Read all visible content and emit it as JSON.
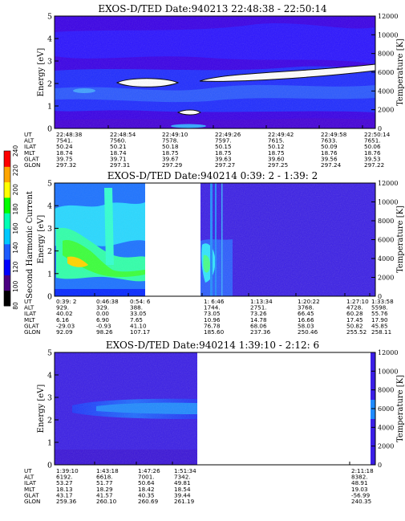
{
  "colorbar": {
    "label": "Second Harmonic Current",
    "ticks": [
      "80",
      "100",
      "120",
      "140",
      "160",
      "180",
      "200",
      "220",
      "240"
    ],
    "colors": [
      "#000000",
      "#4b0082",
      "#0000ff",
      "#1e5cff",
      "#00c8ff",
      "#00ffb4",
      "#00ff00",
      "#ffff00",
      "#ffa500",
      "#ff0000"
    ]
  },
  "chart_data": [
    {
      "type": "heatmap",
      "title": "EXOS-D/TED  Date:940213  22:48:38 - 22:50:14",
      "ylabel": "Energy [eV]",
      "ylim": [
        0,
        5
      ],
      "yticks": [
        "0",
        "1",
        "2",
        "3",
        "4",
        "5"
      ],
      "y2label": "Temperature [K]",
      "y2lim": [
        0,
        12000
      ],
      "y2ticks": [
        "0",
        "2000",
        "4000",
        "6000",
        "8000",
        "10000",
        "12000"
      ],
      "xrange": [
        "22:48:38",
        "22:50:14"
      ],
      "orbit_table": {
        "rows": [
          "UT",
          "ALT",
          "ILAT",
          "MLT",
          "GLAT",
          "GLON"
        ],
        "columns": [
          [
            "22:48:38",
            "7541.",
            "50.24",
            "18.74",
            "39.75",
            "297.32"
          ],
          [
            "22:48:54",
            "7560.",
            "50.21",
            "18.74",
            "39.71",
            "297.31"
          ],
          [
            "22:49:10",
            "7578.",
            "50.18",
            "18.75",
            "39.67",
            "297.29"
          ],
          [
            "22:49:26",
            "7597.",
            "50.15",
            "18.75",
            "39.63",
            "297.27"
          ],
          [
            "22:49:42",
            "7615.",
            "50.12",
            "18.75",
            "39.60",
            "297.25"
          ],
          [
            "22:49:58",
            "7633.",
            "50.09",
            "18.76",
            "39.56",
            "297.24"
          ],
          [
            "22:50:14",
            "7651.",
            "50.06",
            "18.76",
            "39.53",
            "297.22"
          ]
        ]
      }
    },
    {
      "type": "heatmap",
      "title": "EXOS-D/TED   Date:940214   0:39: 2 - 1:39: 2",
      "ylabel": "Energy [eV]",
      "ylim": [
        0,
        5
      ],
      "yticks": [
        "0",
        "1",
        "2",
        "3",
        "4",
        "5"
      ],
      "y2label": "Temperature [K]",
      "y2lim": [
        0,
        12000
      ],
      "y2ticks": [
        "0",
        "2000",
        "4000",
        "6000",
        "8000",
        "10000",
        "12000"
      ],
      "xrange": [
        "0:39: 2",
        "1:39: 2"
      ],
      "orbit_table": {
        "rows": [
          "UT",
          "ALT",
          "ILAT",
          "MLT",
          "GLAT",
          "GLON"
        ],
        "columns": [
          [
            "0:39: 2",
            "929.",
            "40.02",
            "6.16",
            "-29.03",
            "92.09"
          ],
          [
            "0:46:38",
            "329.",
            "0.00",
            "6.90",
            "-0.93",
            "98.26"
          ],
          [
            "0:54: 6",
            "388.",
            "33.05",
            "7.65",
            "41.10",
            "107.17"
          ],
          [
            "1: 6:46",
            "1744.",
            "73.05",
            "10.96",
            "76.78",
            "185.60"
          ],
          [
            "1:13:34",
            "2751.",
            "73.26",
            "14.78",
            "68.06",
            "237.36"
          ],
          [
            "1:20:22",
            "3768.",
            "66.45",
            "16.66",
            "58.03",
            "250.46"
          ],
          [
            "1:27:10",
            "4728.",
            "60.28",
            "17.45",
            "50.82",
            "255.52"
          ],
          [
            "1:33:58",
            "5598.",
            "55.76",
            "17.90",
            "45.85",
            "258.11"
          ]
        ]
      }
    },
    {
      "type": "heatmap",
      "title": "EXOS-D/TED   Date:940214   1:39:10 - 2:12: 6",
      "ylabel": "Energy [eV]",
      "ylim": [
        0,
        5
      ],
      "yticks": [
        "0",
        "1",
        "2",
        "3",
        "4",
        "5"
      ],
      "y2label": "Temperature [K]",
      "y2lim": [
        0,
        12000
      ],
      "y2ticks": [
        "0",
        "2000",
        "4000",
        "6000",
        "8000",
        "10000",
        "12000"
      ],
      "xrange": [
        "1:39:10",
        "2:12: 6"
      ],
      "orbit_table": {
        "rows": [
          "UT",
          "ALT",
          "ILAT",
          "MLT",
          "GLAT",
          "GLON"
        ],
        "columns": [
          [
            "1:39:10",
            "6192.",
            "53.27",
            "18.13",
            "43.17",
            "259.36"
          ],
          [
            "1:43:18",
            "6618.",
            "51.77",
            "18.29",
            "41.57",
            "260.10"
          ],
          [
            "1:47:26",
            "7001.",
            "50.64",
            "18.42",
            "40.35",
            "260.69"
          ],
          [
            "1:51:34",
            "7342.",
            "49.81",
            "18.54",
            "39.44",
            "261.19"
          ],
          [
            "2:11:18",
            "8382.",
            "48.91",
            "19.03",
            "-56.99",
            "240.35"
          ]
        ]
      }
    }
  ]
}
